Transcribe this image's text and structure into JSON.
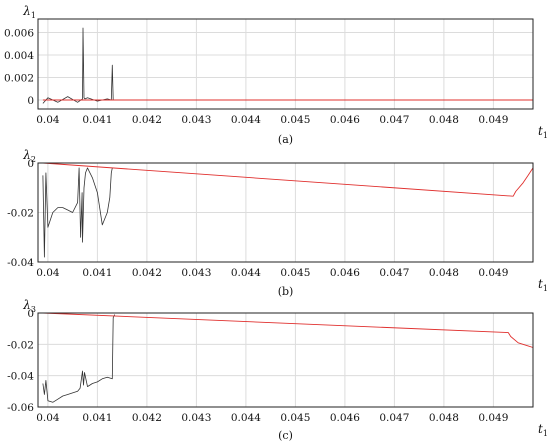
{
  "chart_data": [
    {
      "type": "line",
      "ylabel": "λ",
      "ylabel_sub": "1",
      "xlabel": "t",
      "xlabel_sub": "1",
      "caption": "(a)",
      "grid": true,
      "xlim": [
        0.0398,
        0.0498
      ],
      "ylim": [
        -0.0008,
        0.0072
      ],
      "xticks": [
        0.04,
        0.041,
        0.042,
        0.043,
        0.044,
        0.045,
        0.046,
        0.047,
        0.048,
        0.049
      ],
      "xtick_labels": [
        "0.04",
        "0.041",
        "0.042",
        "0.043",
        "0.044",
        "0.045",
        "0.046",
        "0.047",
        "0.048",
        "0.049"
      ],
      "yticks": [
        0,
        0.002,
        0.004,
        0.006
      ],
      "ytick_labels": [
        "0",
        "0.002",
        "0.004",
        "0.006"
      ],
      "series": [
        {
          "color": "#333333",
          "x": [
            0.0399,
            0.04,
            0.0402,
            0.0404,
            0.0406,
            0.0407,
            0.04071,
            0.04073,
            0.04075,
            0.0408,
            0.041,
            0.0412,
            0.04128,
            0.0413,
            0.04132,
            0.0414,
            0.0498
          ],
          "y": [
            -0.0003,
            0.0002,
            -0.0002,
            0.0003,
            -0.0002,
            0.0001,
            0.0064,
            0.0002,
            0.0001,
            0.0002,
            -0.0001,
            0.0001,
            0.0,
            0.0031,
            0.0,
            0.0,
            0.0
          ]
        },
        {
          "color": "#e0302e",
          "x": [
            0.0399,
            0.0498
          ],
          "y": [
            0.0,
            0.0
          ]
        }
      ]
    },
    {
      "type": "line",
      "ylabel": "λ",
      "ylabel_sub": "2",
      "xlabel": "t",
      "xlabel_sub": "1",
      "caption": "(b)",
      "grid": true,
      "xlim": [
        0.0398,
        0.0498
      ],
      "ylim": [
        -0.04,
        0.0
      ],
      "xticks": [
        0.04,
        0.041,
        0.042,
        0.043,
        0.044,
        0.045,
        0.046,
        0.047,
        0.048,
        0.049
      ],
      "xtick_labels": [
        "0.04",
        "0.041",
        "0.042",
        "0.043",
        "0.044",
        "0.045",
        "0.046",
        "0.047",
        "0.048",
        "0.049"
      ],
      "yticks": [
        -0.04,
        -0.02,
        0
      ],
      "ytick_labels": [
        "-0.04",
        "-0.02",
        "0"
      ],
      "series": [
        {
          "color": "#333333",
          "x": [
            0.0399,
            0.03993,
            0.03996,
            0.04,
            0.0401,
            0.0402,
            0.0403,
            0.0404,
            0.0405,
            0.0406,
            0.04063,
            0.04066,
            0.04069,
            0.0407,
            0.04073,
            0.04076,
            0.0408,
            0.0409,
            0.041,
            0.0411,
            0.0412,
            0.04125,
            0.04128,
            0.0413
          ],
          "y": [
            -0.005,
            -0.038,
            -0.004,
            -0.026,
            -0.02,
            -0.018,
            -0.018,
            -0.019,
            -0.02,
            -0.016,
            -0.002,
            -0.03,
            -0.012,
            -0.032,
            -0.01,
            -0.004,
            -0.002,
            -0.006,
            -0.012,
            -0.025,
            -0.02,
            -0.014,
            -0.004,
            -0.002
          ]
        },
        {
          "color": "#e0302e",
          "x": [
            0.0399,
            0.0494,
            0.04945,
            0.0496,
            0.0497,
            0.0498
          ],
          "y": [
            0.0,
            -0.0134,
            -0.0115,
            -0.008,
            -0.005,
            -0.002
          ]
        }
      ]
    },
    {
      "type": "line",
      "ylabel": "λ",
      "ylabel_sub": "3",
      "xlabel": "t",
      "xlabel_sub": "1",
      "caption": "(c)",
      "grid": true,
      "xlim": [
        0.0398,
        0.0498
      ],
      "ylim": [
        -0.06,
        0.0
      ],
      "xticks": [
        0.04,
        0.041,
        0.042,
        0.043,
        0.044,
        0.045,
        0.046,
        0.047,
        0.048,
        0.049
      ],
      "xtick_labels": [
        "0.04",
        "0.041",
        "0.042",
        "0.043",
        "0.044",
        "0.045",
        "0.046",
        "0.047",
        "0.048",
        "0.049"
      ],
      "yticks": [
        -0.06,
        -0.04,
        -0.02,
        0
      ],
      "ytick_labels": [
        "-0.06",
        "-0.04",
        "-0.02",
        "0"
      ],
      "series": [
        {
          "color": "#333333",
          "x": [
            0.0399,
            0.03993,
            0.03996,
            0.04,
            0.0401,
            0.0402,
            0.0403,
            0.0404,
            0.0405,
            0.0406,
            0.04065,
            0.0407,
            0.04072,
            0.04074,
            0.0408,
            0.0409,
            0.041,
            0.0411,
            0.0412,
            0.0413,
            0.04132,
            0.04135
          ],
          "y": [
            -0.045,
            -0.052,
            -0.043,
            -0.056,
            -0.057,
            -0.055,
            -0.053,
            -0.052,
            -0.051,
            -0.05,
            -0.048,
            -0.037,
            -0.046,
            -0.038,
            -0.047,
            -0.045,
            -0.044,
            -0.042,
            -0.041,
            -0.042,
            -0.003,
            -0.001
          ]
        },
        {
          "color": "#e0302e",
          "x": [
            0.0399,
            0.0493,
            0.04935,
            0.0495,
            0.0497,
            0.0498
          ],
          "y": [
            0.0,
            -0.0125,
            -0.015,
            -0.019,
            -0.021,
            -0.022
          ]
        }
      ]
    }
  ]
}
